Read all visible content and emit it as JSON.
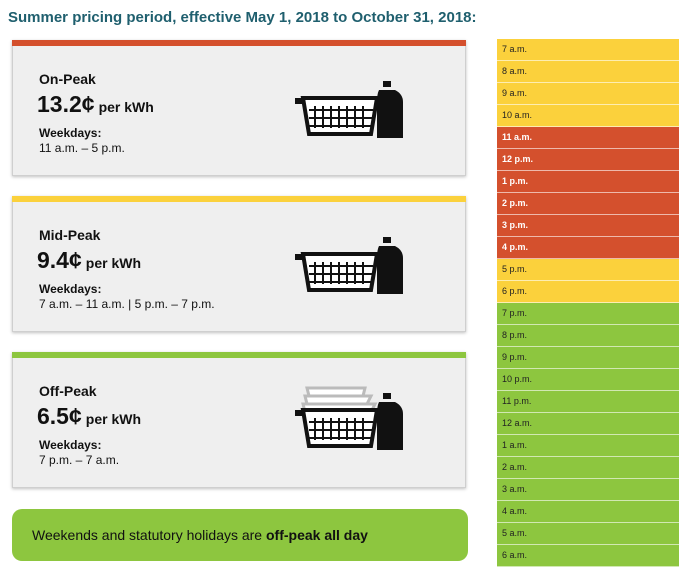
{
  "heading": "Summer pricing period, effective May 1, 2018 to October 31, 2018:",
  "colors": {
    "on_peak": "#d4502d",
    "mid_peak": "#fbd13c",
    "off_peak": "#8dc63f"
  },
  "cards": {
    "on_peak": {
      "name": "On-Peak",
      "price": "13.2¢",
      "unit": "per kWh",
      "days_label": "Weekdays:",
      "hours": "11 a.m. – 5 p.m.",
      "icon": "shopping-basket-with-jug-icon"
    },
    "mid_peak": {
      "name": "Mid-Peak",
      "price": "9.4¢",
      "unit": "per kWh",
      "days_label": "Weekdays:",
      "hours": "7 a.m. – 11 a.m. | 5 p.m. – 7 p.m.",
      "icon": "shopping-basket-with-jug-icon"
    },
    "off_peak": {
      "name": "Off-Peak",
      "price": "6.5¢",
      "unit": "per kWh",
      "days_label": "Weekdays:",
      "hours": "7 p.m. – 7 a.m.",
      "icon": "stacked-baskets-with-jug-icon"
    }
  },
  "banner": {
    "text_before": "Weekends and statutory holidays are ",
    "text_bold": "off-peak all day"
  },
  "timeline": [
    {
      "label": "7 a.m.",
      "period": "mid"
    },
    {
      "label": "8 a.m.",
      "period": "mid"
    },
    {
      "label": "9 a.m.",
      "period": "mid"
    },
    {
      "label": "10 a.m.",
      "period": "mid"
    },
    {
      "label": "11 a.m.",
      "period": "on"
    },
    {
      "label": "12 p.m.",
      "period": "on"
    },
    {
      "label": "1 p.m.",
      "period": "on"
    },
    {
      "label": "2 p.m.",
      "period": "on"
    },
    {
      "label": "3 p.m.",
      "period": "on"
    },
    {
      "label": "4 p.m.",
      "period": "on"
    },
    {
      "label": "5 p.m.",
      "period": "mid"
    },
    {
      "label": "6 p.m.",
      "period": "mid"
    },
    {
      "label": "7 p.m.",
      "period": "off"
    },
    {
      "label": "8 p.m.",
      "period": "off"
    },
    {
      "label": "9 p.m.",
      "period": "off"
    },
    {
      "label": "10 p.m.",
      "period": "off"
    },
    {
      "label": "11 p.m.",
      "period": "off"
    },
    {
      "label": "12 a.m.",
      "period": "off"
    },
    {
      "label": "1 a.m.",
      "period": "off"
    },
    {
      "label": "2 a.m.",
      "period": "off"
    },
    {
      "label": "3 a.m.",
      "period": "off"
    },
    {
      "label": "4 a.m.",
      "period": "off"
    },
    {
      "label": "5 a.m.",
      "period": "off"
    },
    {
      "label": "6 a.m.",
      "period": "off"
    }
  ]
}
